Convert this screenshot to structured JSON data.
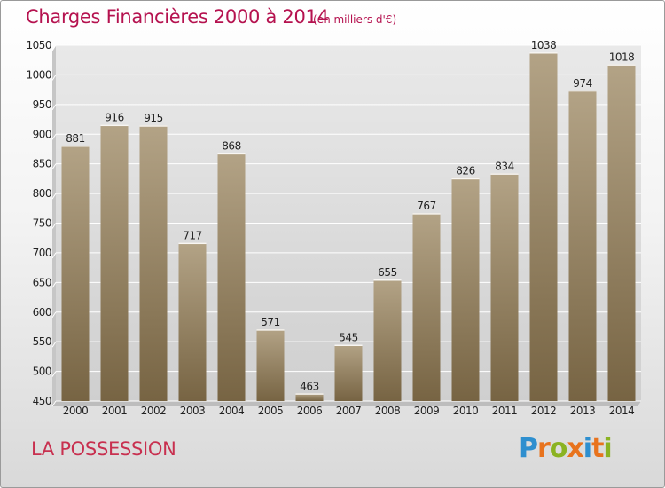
{
  "header": {
    "title": "Charges Financières 2000 à 2014",
    "subtitle": "(en milliers d'€)"
  },
  "footer": {
    "place": "LA POSSESSION",
    "logo": "Proxiti"
  },
  "colors": {
    "title": "#b5124f",
    "bar_light": "#b3a386",
    "bar_dark": "#776443",
    "logo_letters": [
      "#2e8fcf",
      "#e8731d",
      "#8bb322",
      "#e8731d",
      "#2e8fcf",
      "#e8731d",
      "#8bb322"
    ]
  },
  "chart_data": {
    "type": "bar",
    "title": "Charges Financières 2000 à 2014",
    "subtitle": "(en milliers d'€)",
    "categories": [
      "2000",
      "2001",
      "2002",
      "2003",
      "2004",
      "2005",
      "2006",
      "2007",
      "2008",
      "2009",
      "2010",
      "2011",
      "2012",
      "2013",
      "2014"
    ],
    "values": [
      881,
      916,
      915,
      717,
      868,
      571,
      463,
      545,
      655,
      767,
      826,
      834,
      1038,
      974,
      1018
    ],
    "ylim": [
      450,
      1050
    ],
    "yticks": [
      450,
      500,
      550,
      600,
      650,
      700,
      750,
      800,
      850,
      900,
      950,
      1000,
      1050
    ],
    "grid": true,
    "xlabel": "",
    "ylabel": ""
  }
}
